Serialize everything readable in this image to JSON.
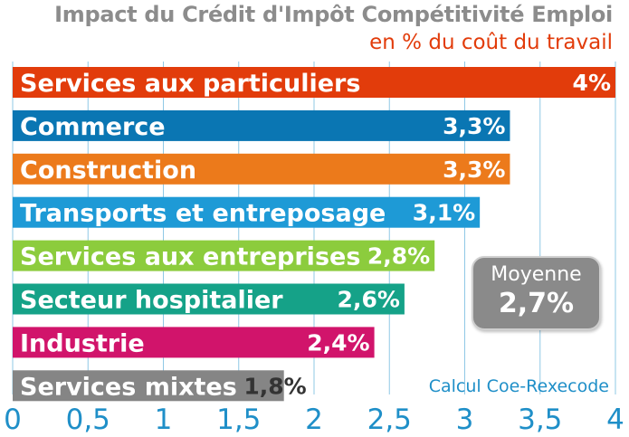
{
  "chart_data": {
    "type": "bar",
    "orientation": "horizontal",
    "title": "Impact du Crédit d'Impôt Compétitivité Emploi",
    "subtitle": "en % du coût du travail",
    "categories": [
      "Services aux particuliers",
      "Commerce",
      "Construction",
      "Transports et entreposage",
      "Services aux entreprises",
      "Secteur hospitalier",
      "Industrie",
      "Services mixtes"
    ],
    "values": [
      4,
      3.3,
      3.3,
      3.1,
      2.8,
      2.6,
      2.4,
      1.8
    ],
    "value_labels": [
      "4%",
      "3,3%",
      "3,3%",
      "3,1%",
      "2,8%",
      "2,6%",
      "2,4%",
      "1,8%"
    ],
    "colors": [
      "#e23c0b",
      "#0a76b3",
      "#ec7a1b",
      "#1e9ad6",
      "#8ccc3d",
      "#15a288",
      "#d1146b",
      "#858585"
    ],
    "xlim": [
      0,
      4
    ],
    "xticks": [
      0,
      0.5,
      1,
      1.5,
      2,
      2.5,
      3,
      3.5,
      4
    ],
    "xtick_labels": [
      "0",
      "0,5",
      "1",
      "1,5",
      "2",
      "2,5",
      "3",
      "3,5",
      "4"
    ],
    "grid": true,
    "average": {
      "label": "Moyenne",
      "value": "2,7%"
    },
    "source": "Calcul Coe-Rexecode"
  }
}
